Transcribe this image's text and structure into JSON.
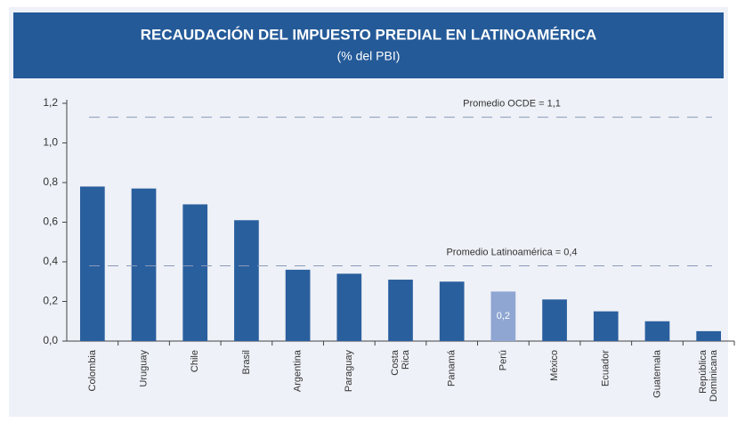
{
  "chart_data": {
    "type": "bar",
    "title": "RECAUDACIÓN DEL IMPUESTO PREDIAL EN LATINOAMÉRICA",
    "subtitle": "(% del PBI)",
    "categories": [
      "Colombia",
      "Uruguay",
      "Chile",
      "Brasil",
      "Argentina",
      "Paraguay",
      "Costa Rica",
      "Panamá",
      "Perú",
      "México",
      "Ecuador",
      "Guatemala",
      "República Dominicana"
    ],
    "values": [
      0.78,
      0.77,
      0.69,
      0.61,
      0.36,
      0.34,
      0.31,
      0.3,
      0.25,
      0.21,
      0.15,
      0.1,
      0.05
    ],
    "value_labels": [
      null,
      null,
      null,
      null,
      null,
      null,
      null,
      null,
      "0,2",
      null,
      null,
      null,
      null
    ],
    "colors": [
      "#2a5f9e",
      "#2a5f9e",
      "#2a5f9e",
      "#2a5f9e",
      "#2a5f9e",
      "#2a5f9e",
      "#2a5f9e",
      "#2a5f9e",
      "#8fa6d2",
      "#2a5f9e",
      "#2a5f9e",
      "#2a5f9e",
      "#2a5f9e"
    ],
    "ylim": [
      0,
      1.2
    ],
    "yticks": [
      {
        "value": 0,
        "label": "0,0"
      },
      {
        "value": 0.2,
        "label": "0,2"
      },
      {
        "value": 0.4,
        "label": "0,4"
      },
      {
        "value": 0.6,
        "label": "0,6"
      },
      {
        "value": 0.8,
        "label": "0,8"
      },
      {
        "value": 1.0,
        "label": "1,0"
      },
      {
        "value": 1.2,
        "label": "1,2"
      }
    ],
    "reference_lines": [
      {
        "label": "Promedio OCDE = 1,1",
        "value": 1.13
      },
      {
        "label": "Promedio Latinoamérica = 0,4",
        "value": 0.38
      }
    ]
  }
}
